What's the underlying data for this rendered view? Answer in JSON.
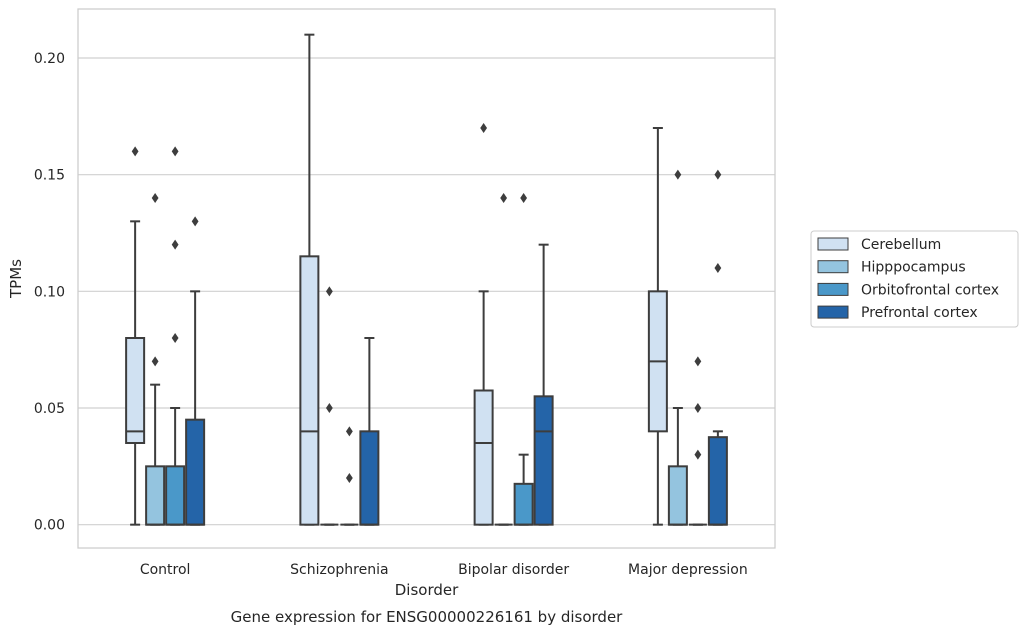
{
  "chart_data": {
    "type": "boxplot",
    "title": "Gene expression for ENSG00000226161 by disorder",
    "xlabel": "Disorder",
    "ylabel": "TPMs",
    "ylim": [
      -0.01,
      0.221
    ],
    "yticks": [
      0.0,
      0.05,
      0.1,
      0.15,
      0.2
    ],
    "ytick_labels": [
      "0.00",
      "0.05",
      "0.10",
      "0.15",
      "0.20"
    ],
    "grid": true,
    "legend_position": "right",
    "categories": [
      "Control",
      "Schizophrenia",
      "Bipolar disorder",
      "Major depression"
    ],
    "series": [
      {
        "name": "Cerebellum",
        "color": "#d0e1f2",
        "boxes": [
          {
            "whislo": 0.0,
            "q1": 0.035,
            "med": 0.04,
            "q3": 0.08,
            "whishi": 0.13,
            "fliers": [
              0.16
            ]
          },
          {
            "whislo": 0.0,
            "q1": 0.0,
            "med": 0.04,
            "q3": 0.115,
            "whishi": 0.21,
            "fliers": []
          },
          {
            "whislo": 0.0,
            "q1": 0.0,
            "med": 0.035,
            "q3": 0.0575,
            "whishi": 0.1,
            "fliers": [
              0.17
            ]
          },
          {
            "whislo": 0.0,
            "q1": 0.04,
            "med": 0.07,
            "q3": 0.1,
            "whishi": 0.17,
            "fliers": []
          }
        ]
      },
      {
        "name": "Hipppocampus",
        "color": "#94c4df",
        "boxes": [
          {
            "whislo": 0.0,
            "q1": 0.0,
            "med": 0.0,
            "q3": 0.025,
            "whishi": 0.06,
            "fliers": [
              0.07,
              0.14
            ]
          },
          {
            "whislo": 0.0,
            "q1": 0.0,
            "med": 0.0,
            "q3": 0.0,
            "whishi": 0.0,
            "fliers": [
              0.05,
              0.1
            ]
          },
          {
            "whislo": 0.0,
            "q1": 0.0,
            "med": 0.0,
            "q3": 0.0,
            "whishi": 0.0,
            "fliers": [
              0.14
            ]
          },
          {
            "whislo": 0.0,
            "q1": 0.0,
            "med": 0.0,
            "q3": 0.025,
            "whishi": 0.05,
            "fliers": [
              0.15
            ]
          }
        ]
      },
      {
        "name": "Orbitofrontal cortex",
        "color": "#4a98c9",
        "boxes": [
          {
            "whislo": 0.0,
            "q1": 0.0,
            "med": 0.0,
            "q3": 0.025,
            "whishi": 0.05,
            "fliers": [
              0.08,
              0.12,
              0.16
            ]
          },
          {
            "whislo": 0.0,
            "q1": 0.0,
            "med": 0.0,
            "q3": 0.0,
            "whishi": 0.0,
            "fliers": [
              0.02,
              0.04
            ]
          },
          {
            "whislo": 0.0,
            "q1": 0.0,
            "med": 0.0,
            "q3": 0.0175,
            "whishi": 0.03,
            "fliers": [
              0.14
            ]
          },
          {
            "whislo": 0.0,
            "q1": 0.0,
            "med": 0.0,
            "q3": 0.0,
            "whishi": 0.0,
            "fliers": [
              0.03,
              0.05,
              0.07
            ]
          }
        ]
      },
      {
        "name": "Prefrontal cortex",
        "color": "#2464a8",
        "boxes": [
          {
            "whislo": 0.0,
            "q1": 0.0,
            "med": 0.0,
            "q3": 0.045,
            "whishi": 0.1,
            "fliers": [
              0.13
            ]
          },
          {
            "whislo": 0.0,
            "q1": 0.0,
            "med": 0.0,
            "q3": 0.04,
            "whishi": 0.08,
            "fliers": []
          },
          {
            "whislo": 0.0,
            "q1": 0.0,
            "med": 0.04,
            "q3": 0.055,
            "whishi": 0.12,
            "fliers": []
          },
          {
            "whislo": 0.0,
            "q1": 0.0,
            "med": 0.0,
            "q3": 0.0375,
            "whishi": 0.04,
            "fliers": [
              0.11,
              0.15
            ]
          }
        ]
      }
    ]
  }
}
